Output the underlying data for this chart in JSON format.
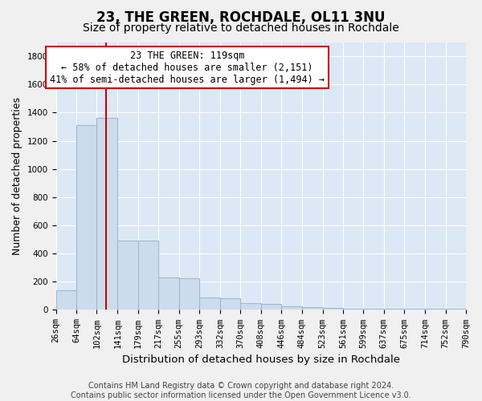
{
  "title": "23, THE GREEN, ROCHDALE, OL11 3NU",
  "subtitle": "Size of property relative to detached houses in Rochdale",
  "xlabel": "Distribution of detached houses by size in Rochdale",
  "ylabel": "Number of detached properties",
  "bin_edges": [
    26,
    64,
    102,
    141,
    179,
    217,
    255,
    293,
    332,
    370,
    408,
    446,
    484,
    523,
    561,
    599,
    637,
    675,
    714,
    752,
    790
  ],
  "bar_heights": [
    140,
    1310,
    1360,
    490,
    490,
    230,
    225,
    90,
    85,
    50,
    40,
    25,
    20,
    15,
    10,
    10,
    10,
    10,
    10,
    10
  ],
  "bar_color": "#ccdcec",
  "bar_edgecolor": "#a0b8d0",
  "property_line_x": 119,
  "property_line_color": "#cc0000",
  "annotation_text": "23 THE GREEN: 119sqm\n← 58% of detached houses are smaller (2,151)\n41% of semi-detached houses are larger (1,494) →",
  "annotation_box_color": "#ffffff",
  "annotation_box_edgecolor": "#cc0000",
  "ylim": [
    0,
    1900
  ],
  "fig_background_color": "#f0f0f0",
  "plot_background": "#dce8f5",
  "footnote": "Contains HM Land Registry data © Crown copyright and database right 2024.\nContains public sector information licensed under the Open Government Licence v3.0.",
  "title_fontsize": 12,
  "subtitle_fontsize": 10,
  "xlabel_fontsize": 9.5,
  "ylabel_fontsize": 9,
  "tick_fontsize": 7.5,
  "footnote_fontsize": 7,
  "annotation_fontsize": 8.5
}
